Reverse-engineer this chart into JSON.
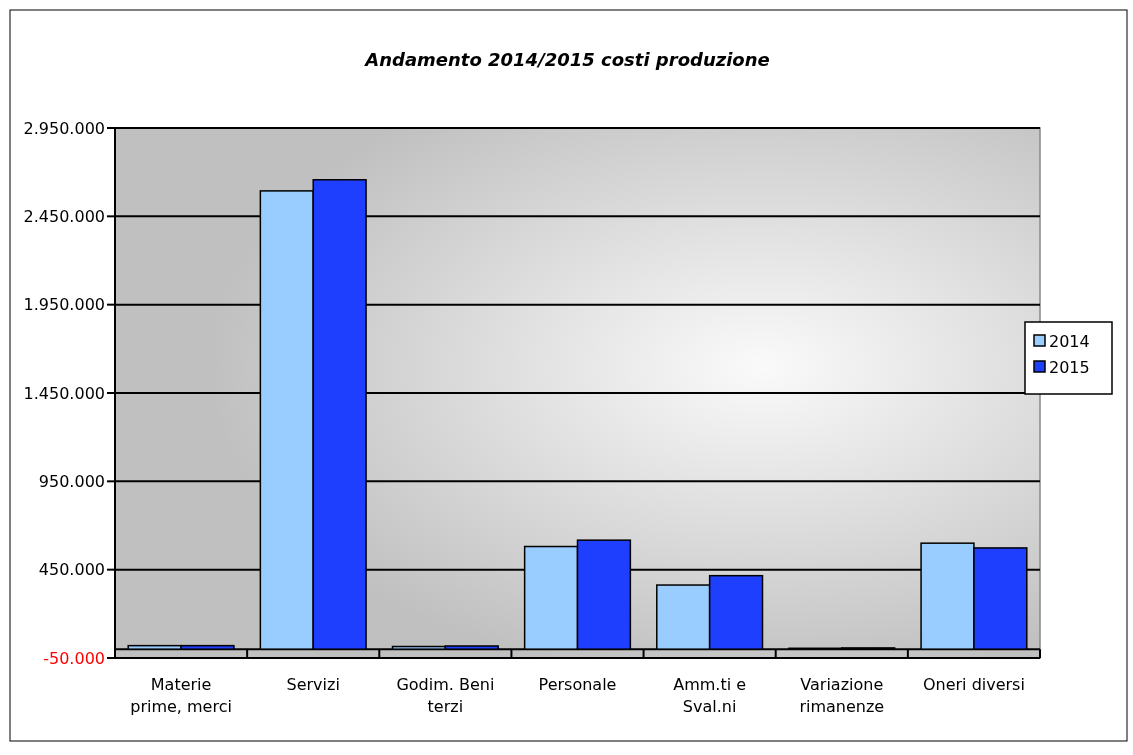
{
  "chart_data": {
    "type": "bar",
    "title": "Andamento 2014/2015 costi produzione",
    "categories": [
      "Materie prime, merci",
      "Servizi",
      "Godim. Beni terzi",
      "Personale",
      "Amm.ti e Sval.ni",
      "Variazione rimanenze",
      "Oneri diversi"
    ],
    "series": [
      {
        "name": "2014",
        "color": "#99ccff",
        "values": [
          20000,
          2594000,
          15000,
          581000,
          363000,
          5000,
          600000
        ]
      },
      {
        "name": "2015",
        "color": "#1f3fff",
        "values": [
          20000,
          2657000,
          18000,
          617000,
          416000,
          7000,
          573000
        ]
      }
    ],
    "ylim": [
      -50000,
      2950000
    ],
    "yticks": [
      {
        "value": -50000,
        "label": "-50.000"
      },
      {
        "value": 450000,
        "label": "450.000"
      },
      {
        "value": 950000,
        "label": "950.000"
      },
      {
        "value": 1450000,
        "label": "1.450.000"
      },
      {
        "value": 1950000,
        "label": "1.950.000"
      },
      {
        "value": 2450000,
        "label": "2.450.000"
      },
      {
        "value": 2950000,
        "label": "2.950.000"
      }
    ],
    "grid": "y",
    "legend": "right"
  }
}
